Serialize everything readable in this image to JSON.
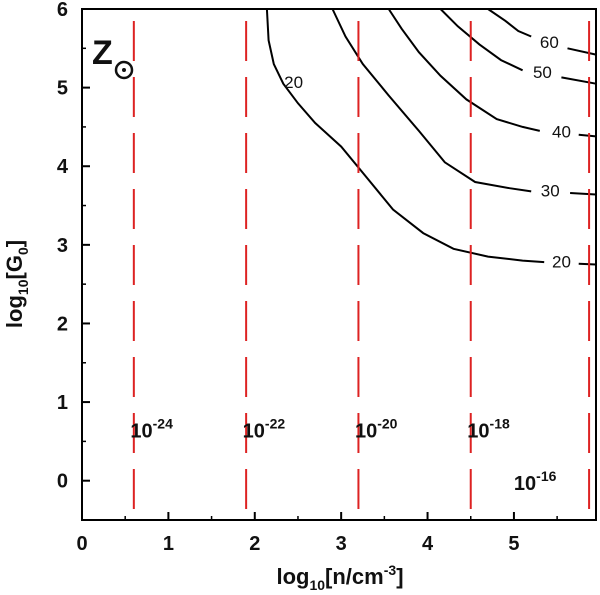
{
  "chart_data": {
    "type": "line",
    "panel_label": "Z",
    "xlabel": "log10[n/cm-3]",
    "ylabel": "log10[G0]",
    "xlim": [
      0,
      5.95
    ],
    "ylim": [
      -0.5,
      6
    ],
    "xticks": [
      "0",
      "1",
      "2",
      "3",
      "4",
      "5"
    ],
    "yticks": [
      "0",
      "1",
      "2",
      "3",
      "4",
      "5",
      "6"
    ],
    "grid": false,
    "contour_color": "#000000",
    "boundary_color": "#dd2222",
    "contours": [
      {
        "level": "20",
        "segments": [
          {
            "points": [
              [
                2.14,
                6.0
              ],
              [
                2.16,
                5.6
              ],
              [
                2.22,
                5.3
              ],
              [
                2.33,
                5.05
              ],
              [
                2.5,
                4.8
              ],
              [
                2.7,
                4.55
              ],
              [
                3.0,
                4.25
              ],
              [
                3.3,
                3.85
              ],
              [
                3.6,
                3.45
              ],
              [
                3.95,
                3.15
              ],
              [
                4.3,
                2.95
              ],
              [
                4.7,
                2.85
              ],
              [
                5.1,
                2.8
              ],
              [
                5.35,
                2.78
              ]
            ]
          },
          {
            "points": [
              [
                5.75,
                2.76
              ],
              [
                5.95,
                2.75
              ]
            ]
          }
        ],
        "labels": [
          {
            "text": "20",
            "x": 2.45,
            "y": 5.05
          },
          {
            "text": "20",
            "x": 5.55,
            "y": 2.77
          }
        ]
      },
      {
        "level": "30",
        "segments": [
          {
            "points": [
              [
                2.9,
                6.0
              ],
              [
                3.05,
                5.65
              ],
              [
                3.25,
                5.3
              ],
              [
                3.55,
                4.9
              ],
              [
                3.9,
                4.45
              ],
              [
                4.2,
                4.05
              ],
              [
                4.55,
                3.8
              ],
              [
                4.95,
                3.72
              ],
              [
                5.2,
                3.68
              ]
            ]
          },
          {
            "points": [
              [
                5.65,
                3.66
              ],
              [
                5.95,
                3.64
              ]
            ]
          }
        ],
        "labels": [
          {
            "text": "30",
            "x": 5.42,
            "y": 3.67
          }
        ]
      },
      {
        "level": "40",
        "segments": [
          {
            "points": [
              [
                3.55,
                6.0
              ],
              [
                3.7,
                5.75
              ],
              [
                3.9,
                5.45
              ],
              [
                4.15,
                5.15
              ],
              [
                4.45,
                4.85
              ],
              [
                4.8,
                4.6
              ],
              [
                5.1,
                4.5
              ],
              [
                5.3,
                4.45
              ]
            ]
          },
          {
            "points": [
              [
                5.75,
                4.4
              ],
              [
                5.95,
                4.38
              ]
            ]
          }
        ],
        "labels": [
          {
            "text": "40",
            "x": 5.55,
            "y": 4.42
          }
        ]
      },
      {
        "level": "50",
        "segments": [
          {
            "points": [
              [
                4.15,
                6.0
              ],
              [
                4.35,
                5.78
              ],
              [
                4.6,
                5.55
              ],
              [
                4.85,
                5.35
              ],
              [
                5.1,
                5.22
              ]
            ]
          },
          {
            "points": [
              [
                5.55,
                5.13
              ],
              [
                5.95,
                5.05
              ]
            ]
          }
        ],
        "labels": [
          {
            "text": "50",
            "x": 5.33,
            "y": 5.18
          }
        ]
      },
      {
        "level": "60",
        "segments": [
          {
            "points": [
              [
                4.7,
                6.0
              ],
              [
                4.9,
                5.85
              ],
              [
                5.05,
                5.72
              ],
              [
                5.2,
                5.65
              ]
            ]
          },
          {
            "points": [
              [
                5.62,
                5.5
              ],
              [
                5.95,
                5.42
              ]
            ]
          }
        ],
        "labels": [
          {
            "text": "60",
            "x": 5.41,
            "y": 5.56
          }
        ]
      }
    ],
    "boundaries": [
      {
        "x": 0.6,
        "label_base": "10",
        "label_exp": "-24",
        "label_x": 0.56,
        "label_y": 0.55
      },
      {
        "x": 1.9,
        "label_base": "10",
        "label_exp": "-22",
        "label_x": 1.86,
        "label_y": 0.55
      },
      {
        "x": 3.2,
        "label_base": "10",
        "label_exp": "-20",
        "label_x": 3.16,
        "label_y": 0.55
      },
      {
        "x": 4.5,
        "label_base": "10",
        "label_exp": "-18",
        "label_x": 4.46,
        "label_y": 0.55
      },
      {
        "x": 5.87,
        "label_base": "10",
        "label_exp": "-16",
        "label_x": 5.0,
        "label_y": -0.12
      }
    ]
  }
}
